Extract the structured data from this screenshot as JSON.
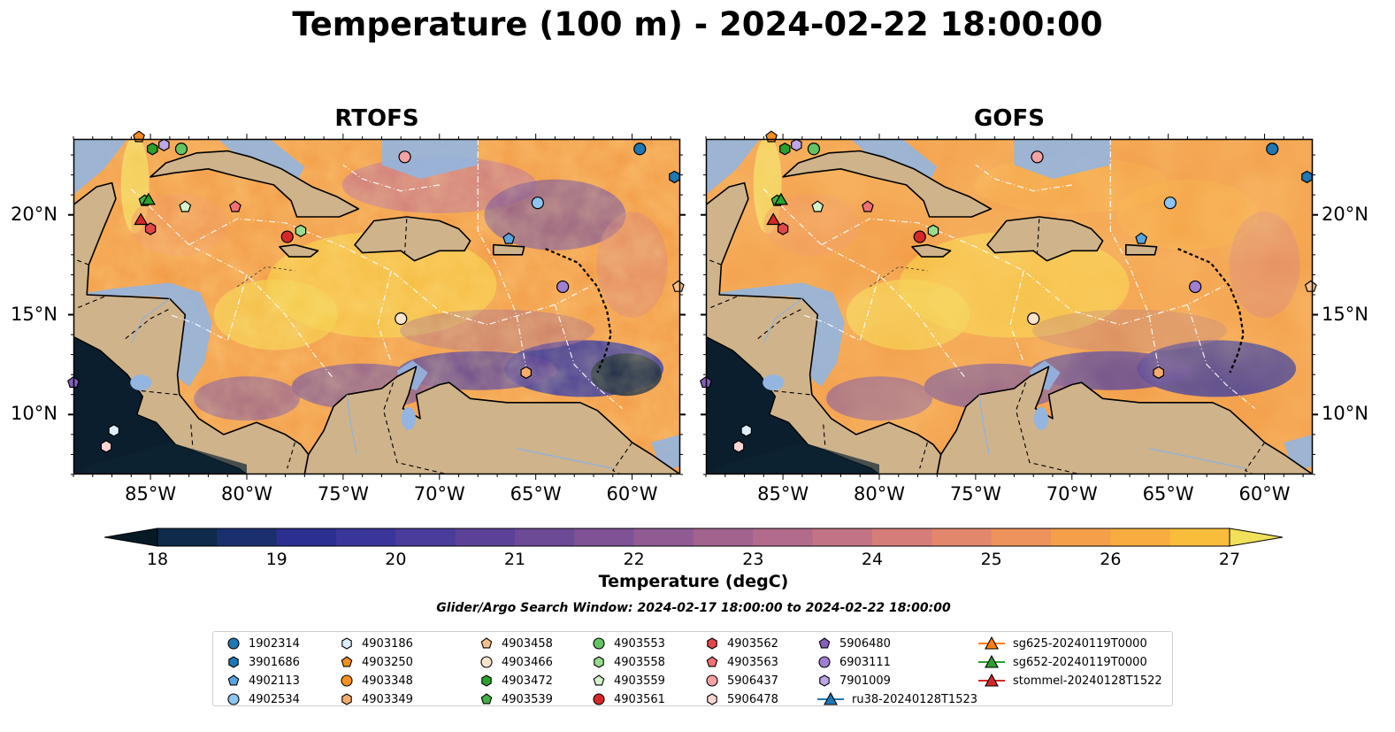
{
  "title": "Temperature (100 m) - 2024-02-22 18:00:00",
  "colors": {
    "land": "#cfb38b",
    "shallow_water": "#94b5e0",
    "deep": "#0b1e2e"
  },
  "maps": [
    {
      "name": "RTOFS",
      "field_style": "rtofs"
    },
    {
      "name": "GOFS",
      "field_style": "gofs"
    }
  ],
  "map_extent": {
    "lon_min": -89,
    "lon_max": -57.5,
    "lat_min": 7,
    "lat_max": 23.8
  },
  "axes": {
    "lon_ticks": [
      -85,
      -80,
      -75,
      -70,
      -65,
      -60
    ],
    "lon_tick_labels": [
      "85°W",
      "80°W",
      "75°W",
      "70°W",
      "65°W",
      "60°W"
    ],
    "lat_ticks": [
      20,
      15,
      10
    ],
    "lat_tick_labels": [
      "20°N",
      "15°N",
      "10°N"
    ]
  },
  "colorbar": {
    "label": "Temperature (degC)",
    "min": 18,
    "max": 27,
    "step": 0.5,
    "tick_values": [
      18,
      19,
      20,
      21,
      22,
      23,
      24,
      25,
      26,
      27
    ],
    "tick_labels": [
      "18",
      "19",
      "20",
      "21",
      "22",
      "23",
      "24",
      "25",
      "26",
      "27"
    ],
    "extend": "both",
    "colors": [
      "#081926",
      "#0f2a4a",
      "#1b2f6e",
      "#2b2f8f",
      "#3a3598",
      "#4a3c9a",
      "#5b4298",
      "#6c4a96",
      "#7e5294",
      "#905b92",
      "#a2638f",
      "#b26b8a",
      "#c37484",
      "#d47d79",
      "#e2876c",
      "#ee935b",
      "#f69f4a",
      "#f9ad40",
      "#f9bd3c",
      "#f6ce45",
      "#f0e05a"
    ]
  },
  "search_window": "Glider/Argo Search Window: 2024-02-17 18:00:00 to 2024-02-22 18:00:00",
  "floats": [
    {
      "id": "1902314",
      "shape": "circle",
      "color": "#1f77b4",
      "lon": -59.6,
      "lat": 23.3
    },
    {
      "id": "3901686",
      "shape": "hexagon",
      "color": "#1f77b4",
      "lon": -57.8,
      "lat": 21.9
    },
    {
      "id": "4902113",
      "shape": "pentagon",
      "color": "#5ba3dd",
      "lon": -66.4,
      "lat": 18.8
    },
    {
      "id": "4902534",
      "shape": "circle",
      "color": "#8ec5ef",
      "lon": -64.9,
      "lat": 20.6
    },
    {
      "id": "4903186",
      "shape": "hexagon",
      "color": "#ddeefb",
      "lon": -86.9,
      "lat": 9.2
    },
    {
      "id": "4903250",
      "shape": "pentagon",
      "color": "#f28f1f",
      "lon": -85.6,
      "lat": 23.9
    },
    {
      "id": "4903348",
      "shape": "circle",
      "color": "#f7921e",
      "lon": null,
      "lat": null
    },
    {
      "id": "4903349",
      "shape": "hexagon",
      "color": "#f6ad6c",
      "lon": -65.5,
      "lat": 12.1
    },
    {
      "id": "4903458",
      "shape": "pentagon",
      "color": "#f5c090",
      "lon": -57.6,
      "lat": 16.4
    },
    {
      "id": "4903466",
      "shape": "circle",
      "color": "#fbe4cc",
      "lon": -72.0,
      "lat": 14.8
    },
    {
      "id": "4903472",
      "shape": "hexagon",
      "color": "#2ca02c",
      "lon": -84.9,
      "lat": 23.3
    },
    {
      "id": "4903539",
      "shape": "pentagon",
      "color": "#45b045",
      "lon": -85.3,
      "lat": 20.7
    },
    {
      "id": "4903553",
      "shape": "circle",
      "color": "#62c462",
      "lon": -83.4,
      "lat": 23.3
    },
    {
      "id": "4903558",
      "shape": "hexagon",
      "color": "#97dd8f",
      "lon": -77.2,
      "lat": 19.2
    },
    {
      "id": "4903559",
      "shape": "pentagon",
      "color": "#d3f2cb",
      "lon": -83.2,
      "lat": 20.4
    },
    {
      "id": "4903561",
      "shape": "circle",
      "color": "#d62728",
      "lon": -77.9,
      "lat": 18.9
    },
    {
      "id": "4903562",
      "shape": "hexagon",
      "color": "#e0474a",
      "lon": -85.0,
      "lat": 19.3
    },
    {
      "id": "4903563",
      "shape": "pentagon",
      "color": "#f07075",
      "lon": -80.6,
      "lat": 20.4
    },
    {
      "id": "5906437",
      "shape": "circle",
      "color": "#f4a2a3",
      "lon": -71.8,
      "lat": 22.9
    },
    {
      "id": "5906478",
      "shape": "hexagon",
      "color": "#fbd5d4",
      "lon": -87.3,
      "lat": 8.4
    },
    {
      "id": "5906480",
      "shape": "pentagon",
      "color": "#8461bb",
      "lon": -89.0,
      "lat": 11.6
    },
    {
      "id": "6903111",
      "shape": "circle",
      "color": "#9f7fd0",
      "lon": -63.6,
      "lat": 16.4
    },
    {
      "id": "7901009",
      "shape": "hexagon",
      "color": "#bfa6e6",
      "lon": -84.3,
      "lat": 23.5
    }
  ],
  "gliders": [
    {
      "id": "ru38-20240128T1523",
      "color": "#1f77b4",
      "lon": null,
      "lat": null
    },
    {
      "id": "sg625-20240119T0000",
      "color": "#ff7f0e",
      "lon": null,
      "lat": null
    },
    {
      "id": "sg652-20240119T0000",
      "color": "#2ca02c",
      "lon": -85.1,
      "lat": 20.7
    },
    {
      "id": "stommel-20240128T1522",
      "color": "#d62728",
      "lon": -85.5,
      "lat": 19.7
    }
  ]
}
